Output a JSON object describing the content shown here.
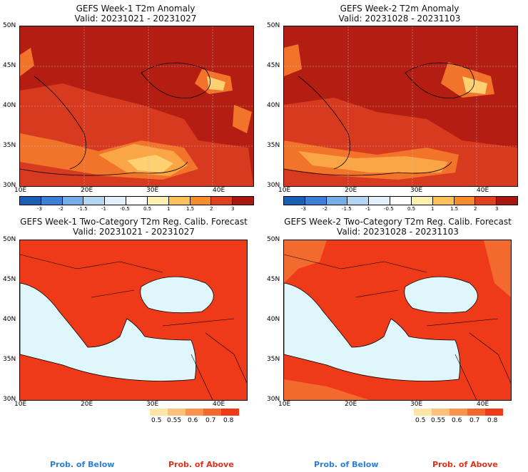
{
  "panels": [
    {
      "title": "GEFS Week-1 T2m Anomaly",
      "valid": "Valid: 20231021 - 20231027"
    },
    {
      "title": "GEFS Week-2 T2m Anomaly",
      "valid": "Valid: 20231028 - 20231103"
    },
    {
      "title": "GEFS Week-1 Two-Category T2m Reg. Calib. Forecast",
      "valid": "Valid: 20231021 - 20231027"
    },
    {
      "title": "GEFS Week-2 Two-Category T2m Reg. Calib. Forecast",
      "valid": "Valid: 20231028 - 20231103"
    }
  ],
  "lat_labels": [
    "50N",
    "45N",
    "40N",
    "35N",
    "30N"
  ],
  "lon_labels": [
    "10E",
    "20E",
    "30E",
    "40E"
  ],
  "anomaly_colorbar": {
    "labels": [
      "-3",
      "-2",
      "-1.5",
      "-1",
      "-0.5",
      "0.5",
      "1",
      "1.5",
      "2",
      "3"
    ],
    "colors": [
      "#1a5fb4",
      "#3d7fd6",
      "#74aee6",
      "#b4d6f2",
      "#e2f0fb",
      "#ffffff",
      "#fff0b0",
      "#fdc25a",
      "#f78c2a",
      "#e0401f",
      "#a81610"
    ]
  },
  "prob_colorbar": {
    "labels": [
      "0.5",
      "0.55",
      "0.6",
      "0.7",
      "0.8"
    ],
    "colors": [
      "#ffe6a8",
      "#fdc27a",
      "#f9934d",
      "#f36a2e",
      "#ef3a1a"
    ]
  },
  "footer": {
    "below": "Prob. of Below",
    "above": "Prob. of Above",
    "below_color": "#2a7fd4",
    "above_color": "#e0301a"
  }
}
